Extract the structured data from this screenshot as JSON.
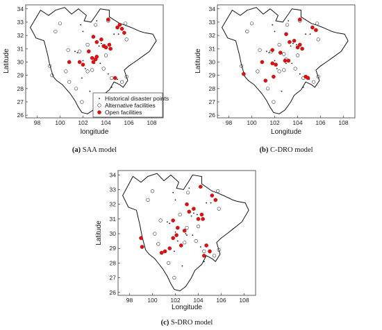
{
  "figure": {
    "x_ticks": [
      "98",
      "100",
      "102",
      "104",
      "106",
      "108"
    ],
    "y_ticks": [
      "26",
      "27",
      "28",
      "29",
      "30",
      "31",
      "32",
      "33",
      "34"
    ],
    "legend": {
      "entries": [
        "Historical disaster points",
        "Alternative facilities",
        "Open facilities"
      ]
    },
    "colors": {
      "open": "#e01010",
      "boundary": "#111111",
      "frame": "#333333"
    }
  },
  "chart_data": [
    {
      "type": "scatter",
      "title": "",
      "caption_label": "(a)",
      "caption_text": " SAA model",
      "xlabel": "longitude",
      "ylabel": "Latitude",
      "xlim": [
        97,
        109
      ],
      "ylim": [
        25.8,
        34.3
      ],
      "show_legend": true,
      "legend_position": "bottom-right",
      "series": [
        {
          "name": "Historical disaster points",
          "values": [
            [
              101.8,
              32.8
            ],
            [
              102.0,
              32.3
            ],
            [
              103.2,
              33.1
            ],
            [
              104.7,
              32.1
            ],
            [
              105.1,
              32.1
            ],
            [
              103.6,
              31.4
            ],
            [
              103.4,
              31.2
            ],
            [
              103.9,
              31.3
            ],
            [
              101.3,
              30.8
            ],
            [
              102.0,
              30.1
            ],
            [
              101.5,
              30.7
            ],
            [
              102.9,
              30.0
            ],
            [
              103.0,
              29.9
            ],
            [
              102.2,
              29.5
            ],
            [
              101.9,
              28.8
            ],
            [
              102.6,
              27.8
            ],
            [
              104.2,
              29.1
            ],
            [
              105.0,
              28.7
            ],
            [
              103.5,
              29.9
            ],
            [
              104.5,
              28.1
            ]
          ]
        },
        {
          "name": "Alternative facilities",
          "values": [
            [
              99.6,
              32.3
            ],
            [
              100.0,
              32.9
            ],
            [
              103.1,
              32.8
            ],
            [
              104.2,
              33.1
            ],
            [
              105.7,
              32.9
            ],
            [
              105.8,
              31.7
            ],
            [
              100.7,
              30.9
            ],
            [
              101.7,
              30.8
            ],
            [
              102.4,
              31.3
            ],
            [
              104.0,
              30.5
            ],
            [
              99.1,
              29.7
            ],
            [
              99.3,
              29.0
            ],
            [
              100.5,
              29.3
            ],
            [
              102.8,
              29.4
            ],
            [
              102.4,
              29.3
            ],
            [
              103.8,
              29.5
            ],
            [
              104.5,
              28.8
            ],
            [
              105.4,
              28.5
            ],
            [
              101.4,
              28.0
            ],
            [
              100.8,
              28.5
            ],
            [
              101.9,
              27.0
            ],
            [
              105.8,
              28.9
            ]
          ]
        },
        {
          "name": "Open facilities",
          "values": [
            [
              104.2,
              33.2
            ],
            [
              105.0,
              32.6
            ],
            [
              105.4,
              32.5
            ],
            [
              105.6,
              32.2
            ],
            [
              105.2,
              32.8
            ],
            [
              102.9,
              31.9
            ],
            [
              103.2,
              31.5
            ],
            [
              103.6,
              31.7
            ],
            [
              103.8,
              31.2
            ],
            [
              104.0,
              31.1
            ],
            [
              104.4,
              31.0
            ],
            [
              104.3,
              31.3
            ],
            [
              102.5,
              30.8
            ],
            [
              102.8,
              30.3
            ],
            [
              103.1,
              30.2
            ],
            [
              102.9,
              30.0
            ],
            [
              103.2,
              30.4
            ],
            [
              101.7,
              30.0
            ],
            [
              102.0,
              29.8
            ],
            [
              100.8,
              30.0
            ],
            [
              104.8,
              28.8
            ]
          ]
        }
      ]
    },
    {
      "type": "scatter",
      "title": "",
      "caption_label": "(b)",
      "caption_text": " C-DRO model",
      "xlabel": "Longitude",
      "ylabel": "Latitude",
      "xlim": [
        97,
        109
      ],
      "ylim": [
        25.8,
        34.3
      ],
      "show_legend": false,
      "series": [
        {
          "name": "Historical disaster points",
          "values": [
            [
              101.8,
              32.8
            ],
            [
              102.0,
              32.3
            ],
            [
              103.2,
              33.1
            ],
            [
              104.7,
              32.1
            ],
            [
              105.1,
              32.1
            ],
            [
              103.6,
              31.4
            ],
            [
              103.4,
              31.2
            ],
            [
              103.9,
              31.3
            ],
            [
              101.3,
              30.8
            ],
            [
              102.0,
              30.1
            ],
            [
              101.5,
              30.7
            ],
            [
              102.9,
              30.0
            ],
            [
              103.0,
              29.9
            ],
            [
              102.2,
              29.5
            ],
            [
              101.9,
              28.8
            ],
            [
              102.6,
              27.8
            ],
            [
              104.2,
              29.1
            ],
            [
              105.0,
              28.7
            ],
            [
              103.5,
              29.9
            ],
            [
              104.5,
              28.1
            ]
          ]
        },
        {
          "name": "Alternative facilities",
          "values": [
            [
              99.6,
              32.3
            ],
            [
              100.0,
              32.9
            ],
            [
              103.1,
              32.8
            ],
            [
              104.2,
              33.1
            ],
            [
              105.7,
              32.9
            ],
            [
              105.8,
              31.7
            ],
            [
              100.7,
              30.9
            ],
            [
              101.7,
              30.8
            ],
            [
              102.4,
              31.3
            ],
            [
              104.0,
              30.5
            ],
            [
              99.1,
              29.7
            ],
            [
              100.5,
              29.3
            ],
            [
              102.8,
              29.4
            ],
            [
              102.4,
              29.3
            ],
            [
              103.8,
              29.5
            ],
            [
              104.5,
              28.8
            ],
            [
              105.4,
              28.5
            ],
            [
              101.4,
              28.0
            ],
            [
              101.9,
              27.0
            ],
            [
              105.8,
              28.9
            ],
            [
              103.0,
              30.2
            ],
            [
              102.8,
              30.6
            ]
          ]
        },
        {
          "name": "Open facilities",
          "values": [
            [
              104.2,
              33.2
            ],
            [
              105.3,
              32.6
            ],
            [
              105.6,
              32.4
            ],
            [
              103.0,
              32.1
            ],
            [
              103.3,
              31.5
            ],
            [
              103.7,
              31.6
            ],
            [
              104.0,
              31.1
            ],
            [
              104.4,
              31.0
            ],
            [
              104.2,
              31.3
            ],
            [
              101.8,
              30.9
            ],
            [
              102.5,
              30.7
            ],
            [
              102.9,
              30.1
            ],
            [
              103.2,
              30.1
            ],
            [
              101.8,
              29.9
            ],
            [
              102.1,
              29.8
            ],
            [
              100.9,
              30.0
            ],
            [
              99.3,
              29.1
            ],
            [
              101.2,
              28.6
            ],
            [
              101.9,
              28.9
            ],
            [
              104.7,
              28.9
            ],
            [
              104.9,
              28.8
            ]
          ]
        }
      ]
    },
    {
      "type": "scatter",
      "title": "",
      "caption_label": "(c)",
      "caption_text": " S-DRO model",
      "xlabel": "Longitude",
      "ylabel": "Latitude",
      "xlim": [
        97,
        109
      ],
      "ylim": [
        25.8,
        34.3
      ],
      "show_legend": false,
      "series": [
        {
          "name": "Historical disaster points",
          "values": [
            [
              101.8,
              32.8
            ],
            [
              102.0,
              32.3
            ],
            [
              103.2,
              33.1
            ],
            [
              104.7,
              32.1
            ],
            [
              105.1,
              32.1
            ],
            [
              103.6,
              31.4
            ],
            [
              103.4,
              31.2
            ],
            [
              103.9,
              31.3
            ],
            [
              101.3,
              30.8
            ],
            [
              102.0,
              30.1
            ],
            [
              101.5,
              30.7
            ],
            [
              102.9,
              30.0
            ],
            [
              103.0,
              29.9
            ],
            [
              102.2,
              29.5
            ],
            [
              101.9,
              28.8
            ],
            [
              102.6,
              27.8
            ],
            [
              104.2,
              29.1
            ],
            [
              105.0,
              28.7
            ],
            [
              103.5,
              29.9
            ],
            [
              104.5,
              28.1
            ]
          ]
        },
        {
          "name": "Alternative facilities",
          "values": [
            [
              99.6,
              32.3
            ],
            [
              100.0,
              32.9
            ],
            [
              103.1,
              32.8
            ],
            [
              105.7,
              32.9
            ],
            [
              105.8,
              31.7
            ],
            [
              100.7,
              30.9
            ],
            [
              103.0,
              30.4
            ],
            [
              102.4,
              31.3
            ],
            [
              104.0,
              30.5
            ],
            [
              100.5,
              29.3
            ],
            [
              102.8,
              29.4
            ],
            [
              103.8,
              29.5
            ],
            [
              104.5,
              28.8
            ],
            [
              105.4,
              28.5
            ],
            [
              101.4,
              28.0
            ],
            [
              101.9,
              27.0
            ],
            [
              105.8,
              28.9
            ],
            [
              100.2,
              30.0
            ]
          ]
        },
        {
          "name": "Open facilities",
          "values": [
            [
              104.2,
              33.2
            ],
            [
              105.2,
              32.6
            ],
            [
              105.5,
              32.3
            ],
            [
              103.0,
              32.0
            ],
            [
              103.2,
              31.5
            ],
            [
              103.6,
              31.7
            ],
            [
              104.0,
              31.0
            ],
            [
              104.4,
              31.0
            ],
            [
              104.3,
              31.3
            ],
            [
              101.8,
              30.9
            ],
            [
              102.2,
              30.4
            ],
            [
              102.8,
              30.2
            ],
            [
              102.1,
              29.9
            ],
            [
              101.8,
              29.7
            ],
            [
              101.5,
              29.0
            ],
            [
              102.5,
              29.2
            ],
            [
              99.0,
              29.7
            ],
            [
              99.1,
              29.1
            ],
            [
              100.8,
              28.7
            ],
            [
              101.1,
              28.8
            ],
            [
              104.7,
              29.2
            ],
            [
              104.5,
              28.5
            ],
            [
              105.0,
              28.8
            ]
          ]
        }
      ]
    }
  ]
}
